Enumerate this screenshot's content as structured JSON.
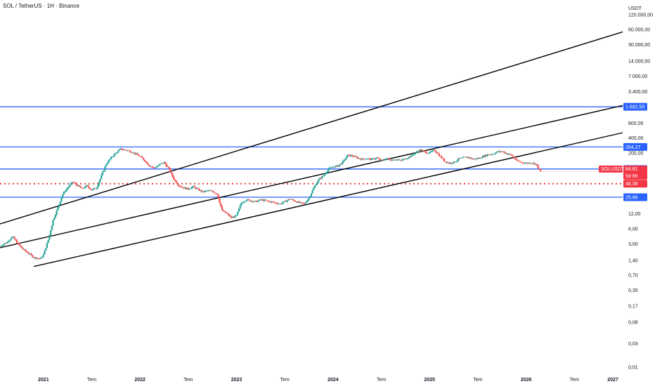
{
  "header": {
    "title": "SOL / TetherUS · 1H · Binance"
  },
  "axis": {
    "currency": "USDT"
  },
  "colors": {
    "up": "#26a69a",
    "down": "#ef5350",
    "hline": "#2962ff",
    "channel": "#000000",
    "dotted": "#e53935",
    "price_badge": "#f23645",
    "level_badge": "#2962ff"
  },
  "chart_data": {
    "type": "candlestick",
    "y_scale": "log",
    "ylim": [
      0.008,
      160000
    ],
    "xlim": [
      2020.55,
      2027.0
    ],
    "y_ticks": [
      "120.000,00",
      "60.000,00",
      "30.000,00",
      "14.000,00",
      "7.000,00",
      "3.400,00",
      "800,00",
      "400,00",
      "200,00",
      "12,00",
      "6,00",
      "3,00",
      "1,40",
      "0,70",
      "0,35",
      "0,17",
      "0,08",
      "0,03",
      "0,01"
    ],
    "y_tick_values": [
      120000,
      60000,
      30000,
      14000,
      7000,
      3400,
      800,
      400,
      200,
      12,
      6,
      3,
      1.4,
      0.7,
      0.35,
      0.17,
      0.08,
      0.03,
      0.01
    ],
    "x_ticks": [
      {
        "label": "2021",
        "t": 2021.0,
        "year": true
      },
      {
        "label": "Tem",
        "t": 2021.5
      },
      {
        "label": "2022",
        "t": 2022.0,
        "year": true
      },
      {
        "label": "Tem",
        "t": 2022.5
      },
      {
        "label": "2023",
        "t": 2023.0,
        "year": true
      },
      {
        "label": "Tem",
        "t": 2023.5
      },
      {
        "label": "2024",
        "t": 2024.0,
        "year": true
      },
      {
        "label": "Tem",
        "t": 2024.5
      },
      {
        "label": "2025",
        "t": 2025.0,
        "year": true
      },
      {
        "label": "Tem",
        "t": 2025.5
      },
      {
        "label": "2026",
        "t": 2026.0,
        "year": true
      },
      {
        "label": "Tem",
        "t": 2026.5
      },
      {
        "label": "2027",
        "t": 2027.0,
        "year": true
      }
    ],
    "horizontal_levels": [
      {
        "label": "1.692,50",
        "value": 1692.5
      },
      {
        "label": "264,27",
        "value": 264.27
      },
      {
        "label": "95,26",
        "value": 95.26
      },
      {
        "label": "25,86",
        "value": 25.86
      }
    ],
    "dotted_level": {
      "label": "48,38",
      "value": 48.38
    },
    "last_price": {
      "symbol": "SOLUSDT",
      "price": "84,81",
      "countdown": "5d 8h",
      "value": 84.81
    },
    "channel_lines": [
      {
        "t1": 2020.55,
        "v1": 7.5,
        "t2": 2027.0,
        "v2": 54000
      },
      {
        "t1": 2020.55,
        "v1": 2.5,
        "t2": 2027.0,
        "v2": 1800
      },
      {
        "t1": 2020.9,
        "v1": 1.05,
        "t2": 2027.0,
        "v2": 510
      }
    ],
    "price_path": [
      [
        2020.55,
        2.7
      ],
      [
        2020.62,
        3.2
      ],
      [
        2020.68,
        4.2
      ],
      [
        2020.72,
        3.3
      ],
      [
        2020.78,
        2.4
      ],
      [
        2020.85,
        1.9
      ],
      [
        2020.9,
        1.6
      ],
      [
        2020.97,
        1.5
      ],
      [
        2021.0,
        1.8
      ],
      [
        2021.05,
        3.6
      ],
      [
        2021.1,
        9
      ],
      [
        2021.15,
        16
      ],
      [
        2021.2,
        30
      ],
      [
        2021.25,
        40
      ],
      [
        2021.3,
        52
      ],
      [
        2021.35,
        45
      ],
      [
        2021.4,
        38
      ],
      [
        2021.45,
        44
      ],
      [
        2021.5,
        36
      ],
      [
        2021.55,
        40
      ],
      [
        2021.6,
        70
      ],
      [
        2021.65,
        120
      ],
      [
        2021.7,
        160
      ],
      [
        2021.75,
        200
      ],
      [
        2021.8,
        240
      ],
      [
        2021.85,
        230
      ],
      [
        2021.92,
        210
      ],
      [
        2022.0,
        170
      ],
      [
        2022.05,
        140
      ],
      [
        2022.1,
        110
      ],
      [
        2022.15,
        100
      ],
      [
        2022.2,
        115
      ],
      [
        2022.25,
        130
      ],
      [
        2022.3,
        95
      ],
      [
        2022.35,
        60
      ],
      [
        2022.4,
        45
      ],
      [
        2022.45,
        40
      ],
      [
        2022.5,
        38
      ],
      [
        2022.55,
        42
      ],
      [
        2022.6,
        37
      ],
      [
        2022.65,
        33
      ],
      [
        2022.7,
        35
      ],
      [
        2022.75,
        34
      ],
      [
        2022.8,
        30
      ],
      [
        2022.85,
        14
      ],
      [
        2022.9,
        12
      ],
      [
        2022.95,
        10
      ],
      [
        2023.0,
        11
      ],
      [
        2023.05,
        20
      ],
      [
        2023.1,
        23
      ],
      [
        2023.15,
        22
      ],
      [
        2023.2,
        21
      ],
      [
        2023.25,
        23
      ],
      [
        2023.3,
        22
      ],
      [
        2023.35,
        21
      ],
      [
        2023.4,
        20
      ],
      [
        2023.45,
        19
      ],
      [
        2023.5,
        21
      ],
      [
        2023.55,
        24
      ],
      [
        2023.6,
        22
      ],
      [
        2023.65,
        20
      ],
      [
        2023.7,
        19
      ],
      [
        2023.75,
        25
      ],
      [
        2023.8,
        40
      ],
      [
        2023.85,
        58
      ],
      [
        2023.9,
        70
      ],
      [
        2023.95,
        95
      ],
      [
        2024.0,
        105
      ],
      [
        2024.05,
        110
      ],
      [
        2024.1,
        130
      ],
      [
        2024.15,
        180
      ],
      [
        2024.2,
        175
      ],
      [
        2024.25,
        160
      ],
      [
        2024.3,
        150
      ],
      [
        2024.35,
        155
      ],
      [
        2024.4,
        148
      ],
      [
        2024.45,
        160
      ],
      [
        2024.5,
        140
      ],
      [
        2024.55,
        155
      ],
      [
        2024.6,
        145
      ],
      [
        2024.65,
        150
      ],
      [
        2024.7,
        140
      ],
      [
        2024.75,
        155
      ],
      [
        2024.8,
        170
      ],
      [
        2024.85,
        200
      ],
      [
        2024.9,
        230
      ],
      [
        2024.95,
        210
      ],
      [
        2025.0,
        200
      ],
      [
        2025.05,
        230
      ],
      [
        2025.1,
        180
      ],
      [
        2025.15,
        140
      ],
      [
        2025.2,
        125
      ],
      [
        2025.25,
        130
      ],
      [
        2025.3,
        150
      ],
      [
        2025.35,
        160
      ],
      [
        2025.4,
        165
      ],
      [
        2025.45,
        150
      ],
      [
        2025.5,
        155
      ],
      [
        2025.55,
        170
      ],
      [
        2025.6,
        185
      ],
      [
        2025.65,
        190
      ],
      [
        2025.7,
        210
      ],
      [
        2025.75,
        215
      ],
      [
        2025.8,
        195
      ],
      [
        2025.85,
        180
      ],
      [
        2025.9,
        140
      ],
      [
        2025.95,
        130
      ],
      [
        2026.0,
        125
      ],
      [
        2026.05,
        128
      ],
      [
        2026.1,
        120
      ],
      [
        2026.15,
        84.81
      ]
    ]
  }
}
